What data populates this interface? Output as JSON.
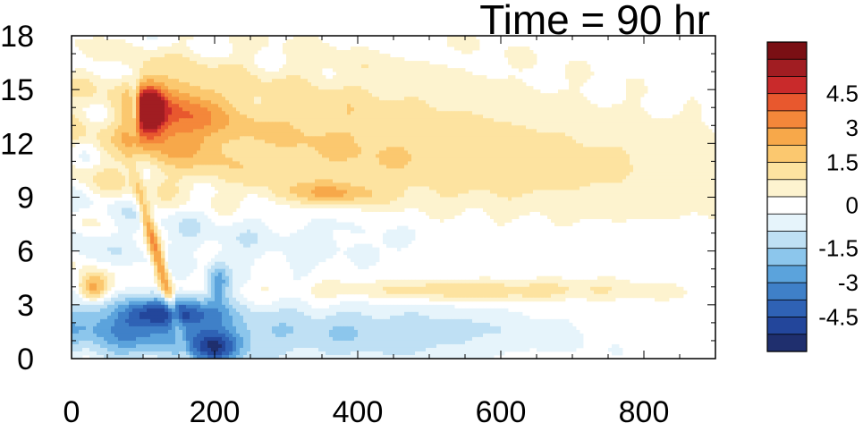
{
  "chart_data": {
    "type": "heatmap",
    "title": "Time = 90 hr",
    "xlabel": "",
    "ylabel": "",
    "xlim": [
      0,
      900
    ],
    "ylim": [
      0,
      18
    ],
    "x_ticks": [
      0,
      200,
      400,
      600,
      800
    ],
    "x_tick_labels": [
      "0",
      "200",
      "400",
      "600",
      "800"
    ],
    "y_ticks": [
      0,
      3,
      6,
      9,
      12,
      15,
      18
    ],
    "y_tick_labels": [
      "0",
      "3",
      "6",
      "9",
      "12",
      "15",
      "18"
    ],
    "colorbar": {
      "levels": [
        -5.25,
        -4.5,
        -3.75,
        -3,
        -2.25,
        -1.5,
        -0.75,
        -0.25,
        0.25,
        0.75,
        1.5,
        2.25,
        3,
        3.75,
        4.5,
        5.25
      ],
      "labels": [
        "-4.5",
        "-3",
        "-1.5",
        "0",
        "1.5",
        "3",
        "4.5"
      ],
      "label_values": [
        -4.5,
        -3,
        -1.5,
        0,
        1.5,
        3,
        4.5
      ],
      "colors": [
        "#1f2f6e",
        "#23469b",
        "#2f62b5",
        "#3f80c8",
        "#5ba3dc",
        "#8cc6ec",
        "#bfe0f4",
        "#e6f4fb",
        "#ffffff",
        "#fdf3cf",
        "#fde3a0",
        "#fbc86f",
        "#f7a84a",
        "#f4873a",
        "#e8582e",
        "#c92a2b",
        "#a11d22",
        "#7a0f14"
      ]
    },
    "features": [
      {
        "name": "upper-level warm anomaly",
        "x": [
          90,
          520
        ],
        "y": [
          9,
          15.5
        ],
        "value": 1.0
      },
      {
        "name": "core warm maximum",
        "x": [
          95,
          120
        ],
        "y": [
          12,
          15
        ],
        "value": 5.0
      },
      {
        "name": "low-level cold anomaly",
        "x": [
          80,
          260
        ],
        "y": [
          0,
          4
        ],
        "value": -3.0
      },
      {
        "name": "warm band near 3.5 km",
        "x": [
          420,
          720
        ],
        "y": [
          3.2,
          4.2
        ],
        "value": 1.0
      }
    ]
  }
}
